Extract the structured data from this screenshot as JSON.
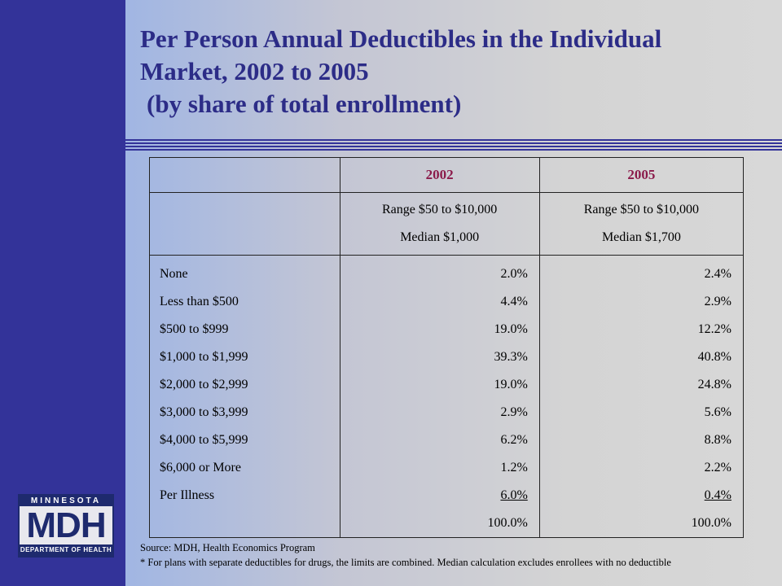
{
  "title": {
    "line1": "Per Person Annual Deductibles in the Individual",
    "line2": "Market, 2002 to 2005",
    "line3": "(by share of total enrollment)"
  },
  "table": {
    "columns": [
      "2002",
      "2005"
    ],
    "summary": [
      {
        "range": "Range   $50 to $10,000",
        "median": "Median  $1,000"
      },
      {
        "range": "Range   $50 to $10,000",
        "median": "Median  $1,700"
      }
    ],
    "rows": [
      {
        "label": "None",
        "v2002": "2.0%",
        "v2005": "2.4%"
      },
      {
        "label": "Less than $500",
        "v2002": "4.4%",
        "v2005": "2.9%"
      },
      {
        "label": "$500 to $999",
        "v2002": "19.0%",
        "v2005": "12.2%"
      },
      {
        "label": "$1,000 to $1,999",
        "v2002": "39.3%",
        "v2005": "40.8%"
      },
      {
        "label": "$2,000 to $2,999",
        "v2002": "19.0%",
        "v2005": "24.8%"
      },
      {
        "label": "$3,000 to $3,999",
        "v2002": "2.9%",
        "v2005": "5.6%"
      },
      {
        "label": "$4,000 to $5,999",
        "v2002": "6.2%",
        "v2005": "8.8%"
      },
      {
        "label": "$6,000 or More",
        "v2002": "1.2%",
        "v2005": "2.2%"
      },
      {
        "label": "Per Illness",
        "v2002": "6.0%",
        "v2005": "0.4%"
      }
    ],
    "totals": {
      "v2002": "100.0%",
      "v2005": "100.0%"
    }
  },
  "logo": {
    "top": "MINNESOTA",
    "mid": "MDH",
    "bottom": "DEPARTMENT OF HEALTH"
  },
  "source": {
    "line1": "Source:  MDH, Health Economics Program",
    "line2": "* For plans with separate deductibles for drugs, the limits are combined.  Median calculation excludes enrollees with no deductible"
  },
  "colors": {
    "sidebar": "#333399",
    "title": "#2c2c87",
    "year_header": "#8b1a4a"
  }
}
